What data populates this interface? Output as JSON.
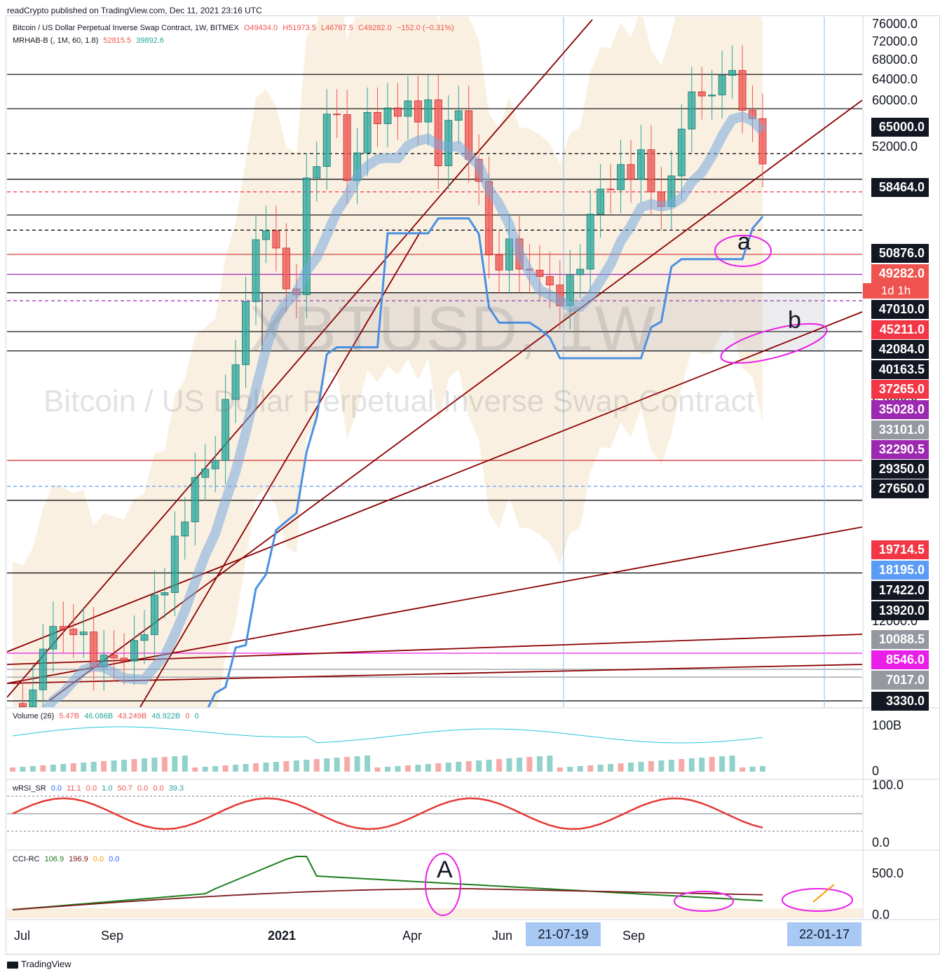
{
  "header": {
    "publisher": "readCrypto published on TradingView.com, Dec 11, 2021 23:16 UTC"
  },
  "main_legend": {
    "symbol": "Bitcoin / US Dollar Perpetual Inverse Swap Contract, 1W, BITMEX",
    "open": "O49434.0",
    "high": "H51973.5",
    "low": "L46767.5",
    "close": "C49282.0",
    "change": "−152.0 (−0.31%)",
    "indicator_name": "MRHAB-B (, 1M, 60, 1.8)",
    "ind_val1": "52815.5",
    "ind_val2": "39892.6"
  },
  "watermark": {
    "ticker": "XBTUSD, 1W",
    "name": "Bitcoin / US Dollar Perpetual Inverse Swap Contract"
  },
  "annotations": {
    "a": "a",
    "b": "b",
    "A": "A"
  },
  "price_axis": {
    "ticks": [
      "76000.0",
      "72000.0",
      "68000.0",
      "64000.0",
      "60000.0",
      "56000.0",
      "52000.0",
      "24000.0",
      "12000.0",
      "4000.0"
    ],
    "labels": [
      {
        "text": "65000.0",
        "color": "#131722"
      },
      {
        "text": "58464.0",
        "color": "#131722"
      },
      {
        "text": "50876.0",
        "color": "#131722"
      },
      {
        "text": "49282.0",
        "color": "#ef5350"
      },
      {
        "text": "47010.0",
        "color": "#131722"
      },
      {
        "text": "45211.0",
        "color": "#f23645"
      },
      {
        "text": "42084.0",
        "color": "#131722"
      },
      {
        "text": "40163.5",
        "color": "#131722"
      },
      {
        "text": "37265.0",
        "color": "#f23645"
      },
      {
        "text": "35028.0",
        "color": "#9c27b0"
      },
      {
        "text": "33101.0",
        "color": "#9598a1"
      },
      {
        "text": "32290.5",
        "color": "#9c27b0"
      },
      {
        "text": "29350.0",
        "color": "#131722"
      },
      {
        "text": "27650.0",
        "color": "#131722"
      },
      {
        "text": "19714.5",
        "color": "#f23645"
      },
      {
        "text": "18195.0",
        "color": "#5b9cf6"
      },
      {
        "text": "17422.0",
        "color": "#131722"
      },
      {
        "text": "13920.0",
        "color": "#131722"
      },
      {
        "text": "10088.5",
        "color": "#9598a1"
      },
      {
        "text": "8546.0",
        "color": "#e91ee9"
      },
      {
        "text": "7017.0",
        "color": "#9598a1"
      },
      {
        "text": "3330.0",
        "color": "#131722"
      }
    ],
    "countdown": "1d 1h"
  },
  "volume_pane": {
    "title": "Volume (26)",
    "v1": "5.47B",
    "v2": "46.086B",
    "v3": "43.249B",
    "v4": "48.922B",
    "v5": "0",
    "v6": "0",
    "ticks": [
      "100B",
      "0"
    ]
  },
  "rsi_pane": {
    "title": "wRSI_SR",
    "values": [
      "0.0",
      "11.1",
      "0.0",
      "1.0",
      "50.7",
      "0.0",
      "0.0",
      "39.3"
    ],
    "ticks": [
      "100.0",
      "0.0"
    ]
  },
  "cci_pane": {
    "title": "CCI-RC",
    "values": [
      "106.9",
      "196.9",
      "0.0",
      "0.0"
    ],
    "ticks": [
      "500.0",
      "0.0"
    ]
  },
  "time_axis": {
    "labels": [
      "Jul",
      "Sep",
      "2021",
      "Apr",
      "Jun",
      "Sep"
    ],
    "highlight_left": "21-07-19",
    "highlight_right": "22-01-17"
  },
  "footer": {
    "brand": "TradingView"
  },
  "chart_data": {
    "type": "candlestick",
    "title": "Bitcoin / US Dollar Perpetual Inverse Swap Contract, 1W, BITMEX",
    "ylim": [
      3330,
      76000
    ],
    "y_scale": "log",
    "x_range": [
      "2020-07",
      "2022-01"
    ],
    "weekly_close_approx": [
      9300,
      9200,
      9700,
      11000,
      11800,
      11700,
      11500,
      11600,
      10400,
      10800,
      10700,
      10600,
      11300,
      11500,
      13000,
      13100,
      15600,
      16300,
      18700,
      19200,
      19700,
      23800,
      26500,
      32200,
      39000,
      40100,
      38000,
      33500,
      32900,
      47200,
      48900,
      57500,
      57400,
      46800,
      51000,
      57800,
      55800,
      58600,
      57100,
      59900,
      56100,
      60100,
      49000,
      56400,
      58100,
      50000,
      46700,
      37200,
      35500,
      39100,
      35600,
      35500,
      34800,
      33900,
      31800,
      35000,
      35600,
      42200,
      45600,
      45500,
      49200,
      47000,
      51500,
      45200,
      43200,
      47500,
      54900,
      61600,
      60800,
      61000,
      64800,
      65800,
      58200,
      56700,
      49282
    ],
    "horizontal_levels": [
      65000,
      58464,
      50876,
      47010,
      45211,
      42084,
      40163.5,
      37265,
      35028,
      33101,
      32290.5,
      29350,
      27650,
      19714.5,
      18195,
      17422,
      13920,
      10088.5,
      8546,
      7017,
      3330
    ],
    "last_close": 49282
  }
}
